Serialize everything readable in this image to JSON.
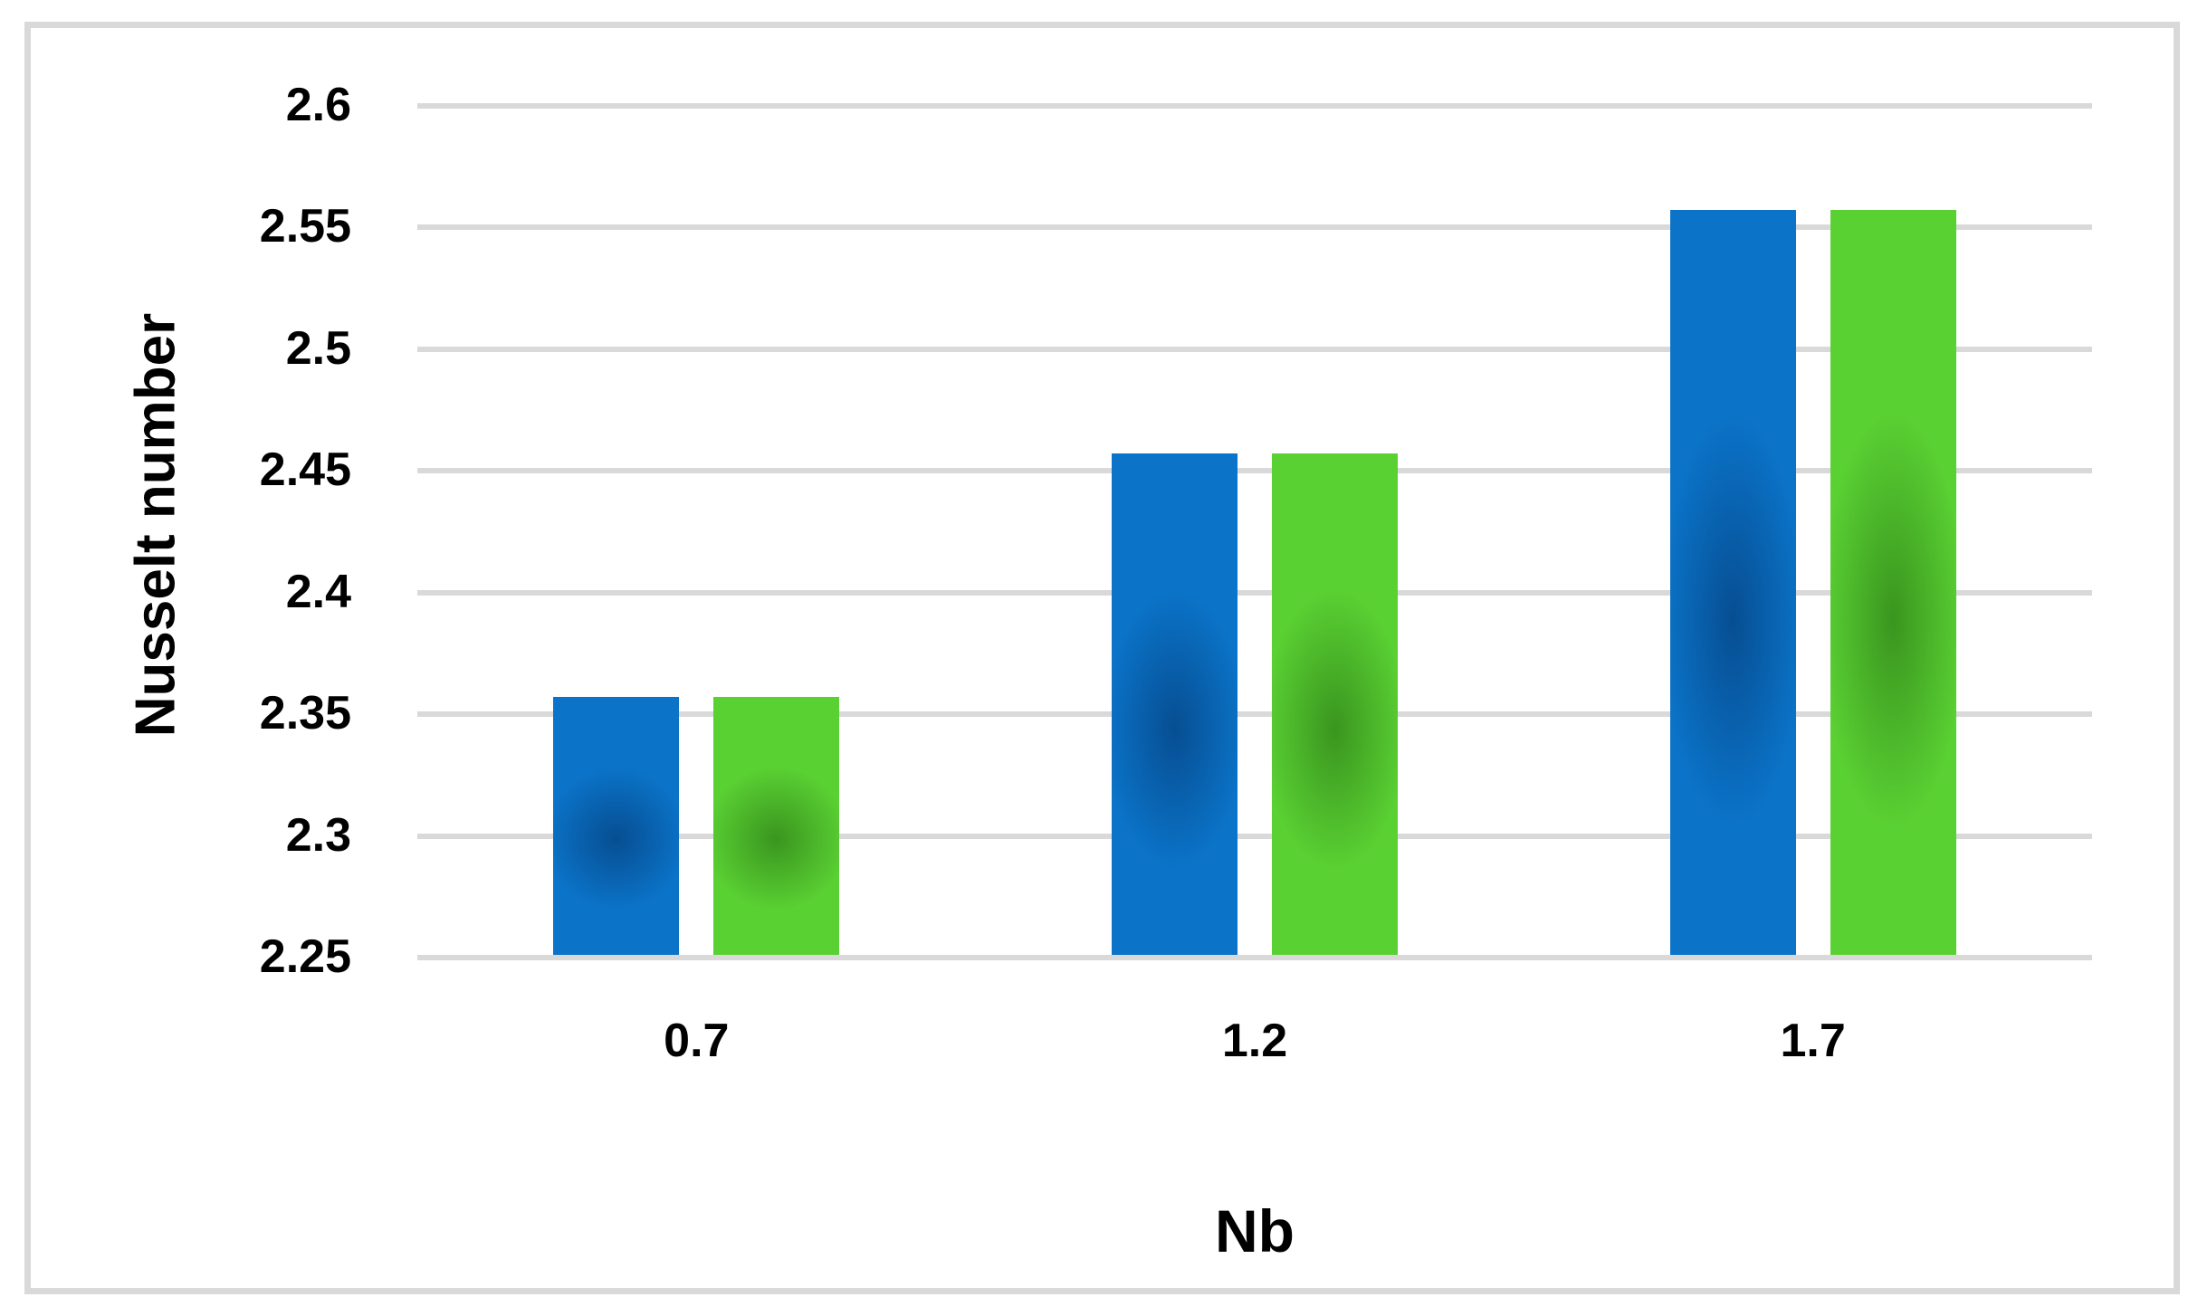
{
  "chart_data": {
    "type": "bar",
    "title": "",
    "xlabel": "Nb",
    "ylabel": "Nusselt number",
    "categories": [
      "0.7",
      "1.2",
      "1.7"
    ],
    "series": [
      {
        "name": "blue",
        "color": "#0b74c9",
        "shade": "rgba(0,25,70,0.42)",
        "values": [
          2.357,
          2.457,
          2.557
        ]
      },
      {
        "name": "green",
        "color": "#5ad133",
        "shade": "rgba(10,60,0,0.40)",
        "values": [
          2.357,
          2.457,
          2.557
        ]
      }
    ],
    "ylim": [
      2.25,
      2.6
    ],
    "ytick_step": 0.05,
    "yticks": [
      "2.25",
      "2.3",
      "2.35",
      "2.4",
      "2.45",
      "2.5",
      "2.55",
      "2.6"
    ],
    "grid": "horizontal",
    "legend": "none",
    "gridline_color": "#d9d9d9",
    "frame_color": "#d9d9d9",
    "text_color": "#000000",
    "background_color": "#ffffff"
  }
}
